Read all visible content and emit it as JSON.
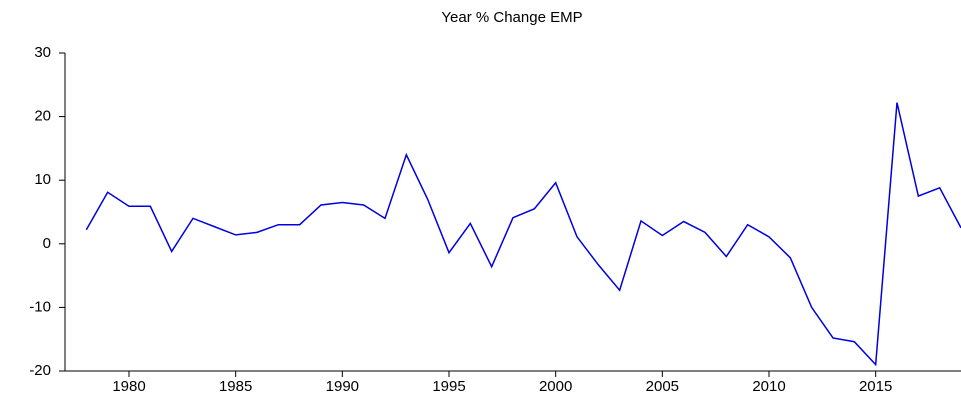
{
  "chart_data": {
    "type": "line",
    "title": "Year % Change EMP",
    "x": [
      1978,
      1979,
      1980,
      1981,
      1982,
      1983,
      1984,
      1985,
      1986,
      1987,
      1988,
      1989,
      1990,
      1991,
      1992,
      1993,
      1994,
      1995,
      1996,
      1997,
      1998,
      1999,
      2000,
      2001,
      2002,
      2003,
      2004,
      2005,
      2006,
      2007,
      2008,
      2009,
      2010,
      2011,
      2012,
      2013,
      2014,
      2015,
      2016,
      2017,
      2018,
      2019
    ],
    "series": [
      {
        "name": "EMP",
        "color": "#0000e0",
        "values": [
          2.2,
          8.1,
          5.9,
          5.9,
          -1.2,
          4.0,
          2.7,
          1.4,
          1.8,
          3.0,
          3.0,
          6.1,
          6.5,
          6.1,
          4.0,
          14.0,
          7.0,
          -1.4,
          3.2,
          -3.6,
          4.1,
          5.5,
          9.6,
          1.1,
          -3.3,
          -7.3,
          3.6,
          1.3,
          3.5,
          1.8,
          -2.0,
          3.0,
          1.1,
          -2.2,
          -10.0,
          -14.8,
          -15.4,
          -19.0,
          22.2,
          7.5,
          8.8,
          2.5
        ]
      }
    ],
    "xlim": [
      1977,
      2019
    ],
    "xticks": [
      1980,
      1985,
      1990,
      1995,
      2000,
      2005,
      2010,
      2015
    ],
    "ylim": [
      -20,
      30
    ],
    "yticks": [
      -20,
      -10,
      0,
      10,
      20,
      30
    ]
  }
}
